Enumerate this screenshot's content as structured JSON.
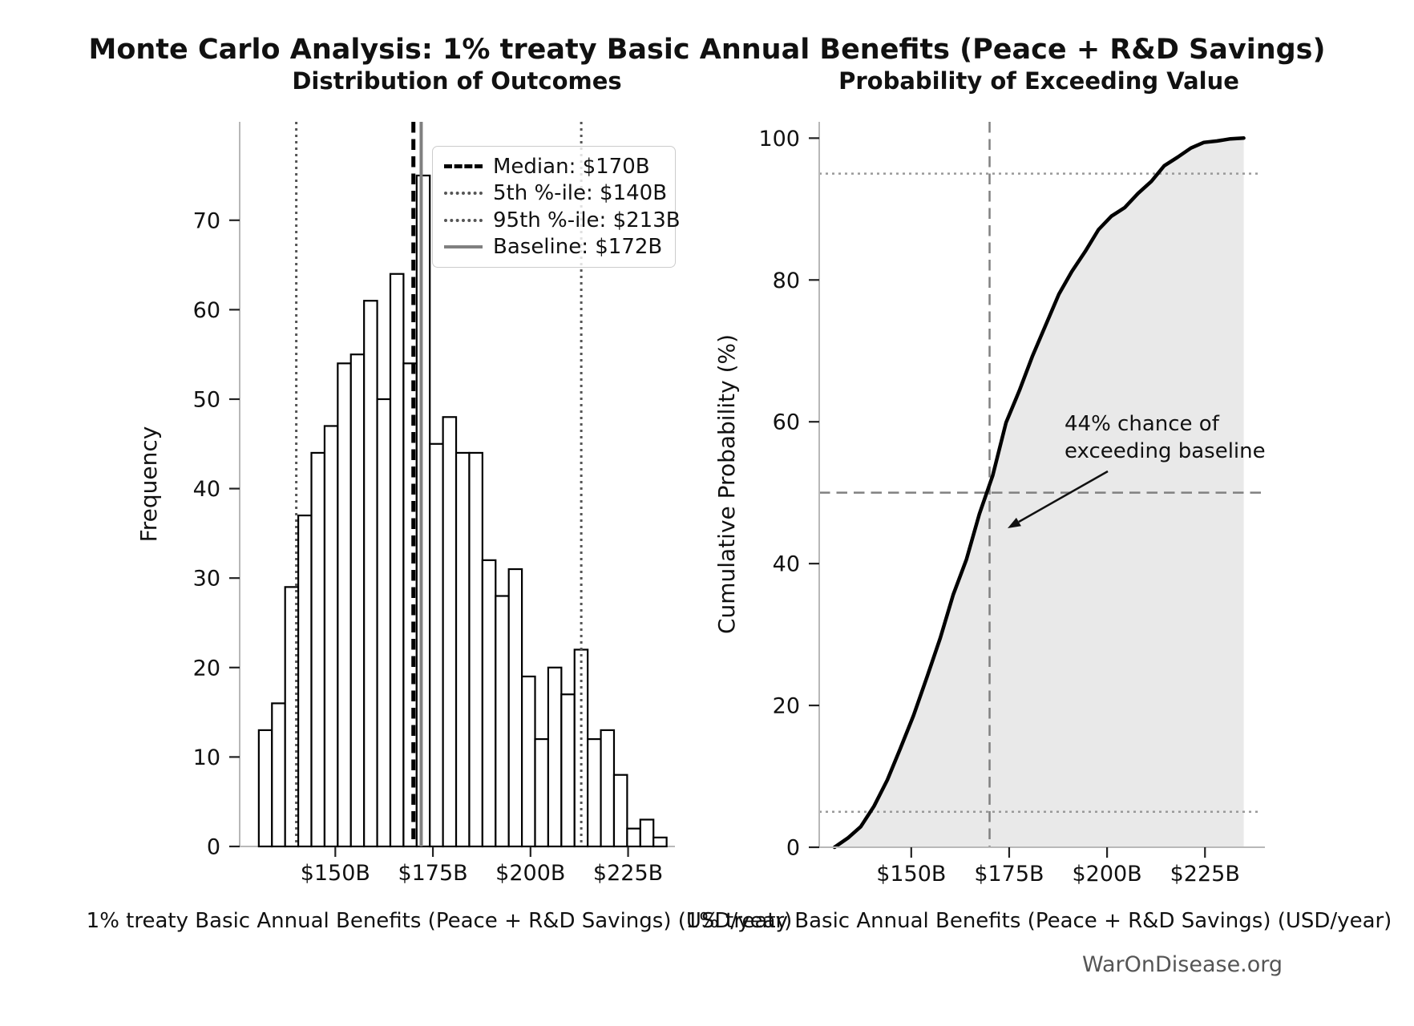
{
  "page": {
    "title": "Monte Carlo Analysis: 1% treaty Basic Annual Benefits (Peace + R&D Savings)",
    "footer": "WarOnDisease.org"
  },
  "chart_data": [
    {
      "type": "bar",
      "title": "Distribution of Outcomes",
      "xlabel": "1% treaty Basic Annual Benefits (Peace + R&D Savings) (USD/year)",
      "ylabel": "Frequency",
      "n_samples": 1000,
      "bins": {
        "start": 130.4,
        "width": 3.37,
        "unit": "USD billions per year"
      },
      "values": [
        13,
        16,
        29,
        37,
        44,
        47,
        54,
        55,
        61,
        50,
        64,
        54,
        75,
        45,
        48,
        44,
        44,
        32,
        28,
        31,
        19,
        12,
        20,
        17,
        22,
        12,
        13,
        8,
        2,
        3,
        1
      ],
      "xticks": [
        {
          "value": 150,
          "label": "$150B"
        },
        {
          "value": 175,
          "label": "$175B"
        },
        {
          "value": 200,
          "label": "$200B"
        },
        {
          "value": 225,
          "label": "$225B"
        }
      ],
      "yticks": [
        0,
        10,
        20,
        30,
        40,
        50,
        60,
        70
      ],
      "xlim": [
        125.5,
        237
      ],
      "ylim": [
        0,
        81
      ],
      "grid": false,
      "bar_fill": "#ffffff",
      "bar_edge": "#000000",
      "legend_position": "upper right",
      "markers": [
        {
          "label": "Median: $170B",
          "x": 170,
          "style": "dashed",
          "color": "#000000",
          "width": 5
        },
        {
          "label": "5th %-ile: $140B",
          "x": 140,
          "style": "dotted",
          "color": "#555555",
          "width": 3
        },
        {
          "label": "95th %-ile: $213B",
          "x": 213,
          "style": "dotted",
          "color": "#555555",
          "width": 3
        },
        {
          "label": "Baseline: $172B",
          "x": 172,
          "style": "solid",
          "color": "#808080",
          "width": 4
        }
      ]
    },
    {
      "type": "area",
      "title": "Probability of Exceeding Value",
      "xlabel": "1% treaty Basic Annual Benefits (Peace + R&D Savings) (USD/year)",
      "ylabel": "Cumulative Probability (%)",
      "x": [
        130.4,
        133.8,
        137.1,
        140.5,
        143.9,
        147.2,
        150.6,
        154,
        157.4,
        160.7,
        164.1,
        167.4,
        170.8,
        174.2,
        177.6,
        180.9,
        184.3,
        187.7,
        191,
        194.4,
        197.8,
        201.1,
        204.5,
        207.9,
        211.3,
        214.6,
        218,
        221.4,
        224.7,
        228.1,
        231.5,
        234.9
      ],
      "y": [
        0,
        1.3,
        2.9,
        5.8,
        9.5,
        13.9,
        18.6,
        24,
        29.5,
        35.6,
        40.6,
        47,
        52.4,
        59.9,
        64.4,
        69.2,
        73.6,
        78,
        81.2,
        84,
        87.1,
        89,
        90.2,
        92.2,
        93.9,
        96.1,
        97.3,
        98.6,
        99.4,
        99.6,
        99.9,
        100
      ],
      "xticks": [
        {
          "value": 150,
          "label": "$150B"
        },
        {
          "value": 175,
          "label": "$175B"
        },
        {
          "value": 200,
          "label": "$200B"
        },
        {
          "value": 225,
          "label": "$225B"
        }
      ],
      "yticks": [
        0,
        20,
        40,
        60,
        80,
        100
      ],
      "xlim": [
        126.5,
        240.3
      ],
      "ylim": [
        0,
        102.3
      ],
      "grid": false,
      "line_color": "#000000",
      "fill_color": "#e9e9e9",
      "hlines": [
        {
          "y": 95,
          "style": "dotted",
          "color": "#999999",
          "width": 2.5
        },
        {
          "y": 50,
          "style": "dashed",
          "color": "#808080",
          "width": 2.5
        },
        {
          "y": 5,
          "style": "dotted",
          "color": "#999999",
          "width": 2.5
        }
      ],
      "vlines": [
        {
          "x": 170,
          "style": "dashed",
          "color": "#808080",
          "width": 2.5
        }
      ],
      "annotation": {
        "line1": "44% chance of",
        "line2": "exceeding baseline"
      }
    }
  ]
}
